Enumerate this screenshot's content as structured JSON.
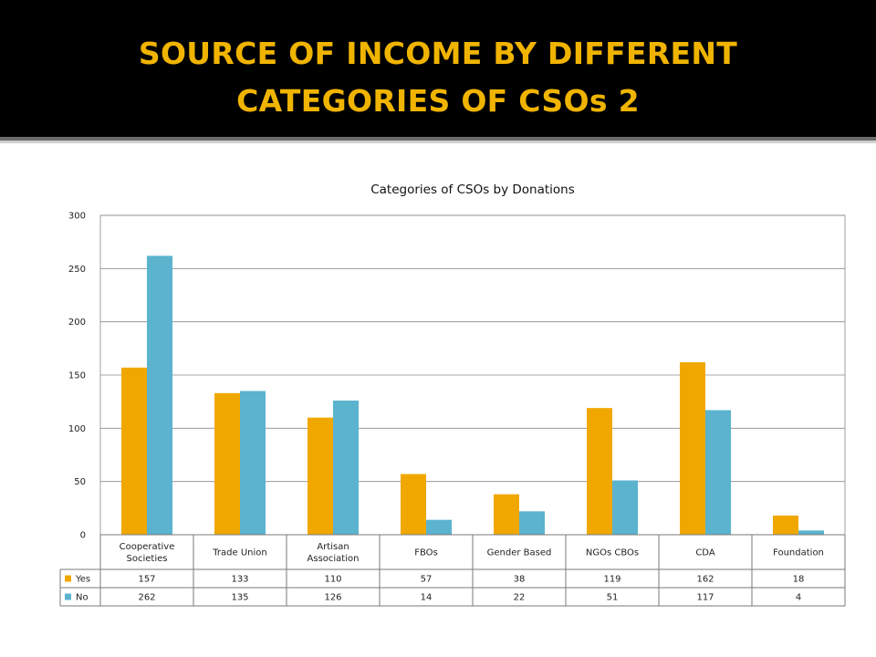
{
  "slide": {
    "title_line1": "SOURCE OF INCOME BY DIFFERENT",
    "title_line2": "CATEGORIES OF CSOs 2"
  },
  "colors": {
    "background_header": "#000000",
    "title": "#f0b400",
    "series_yes": "#f0a800",
    "series_no": "#5bb3ce"
  },
  "chart_data": {
    "type": "bar",
    "title": "Categories of CSOs by  Donations",
    "categories": [
      [
        "Cooperative",
        "Societies"
      ],
      [
        "Trade Union"
      ],
      [
        "Artisan",
        "Association"
      ],
      [
        "FBOs"
      ],
      [
        "Gender Based"
      ],
      [
        "NGOs CBOs"
      ],
      [
        "CDA"
      ],
      [
        "Foundation"
      ]
    ],
    "series": [
      {
        "name": "Yes",
        "color": "#f0a800",
        "values": [
          157,
          133,
          110,
          57,
          38,
          119,
          162,
          18
        ]
      },
      {
        "name": "No",
        "color": "#5bb3ce",
        "values": [
          262,
          135,
          126,
          14,
          22,
          51,
          117,
          4
        ]
      }
    ],
    "ylim": [
      0,
      300
    ],
    "yticks": [
      0,
      50,
      100,
      150,
      200,
      250,
      300
    ],
    "grid": true,
    "legend": "data-table"
  }
}
